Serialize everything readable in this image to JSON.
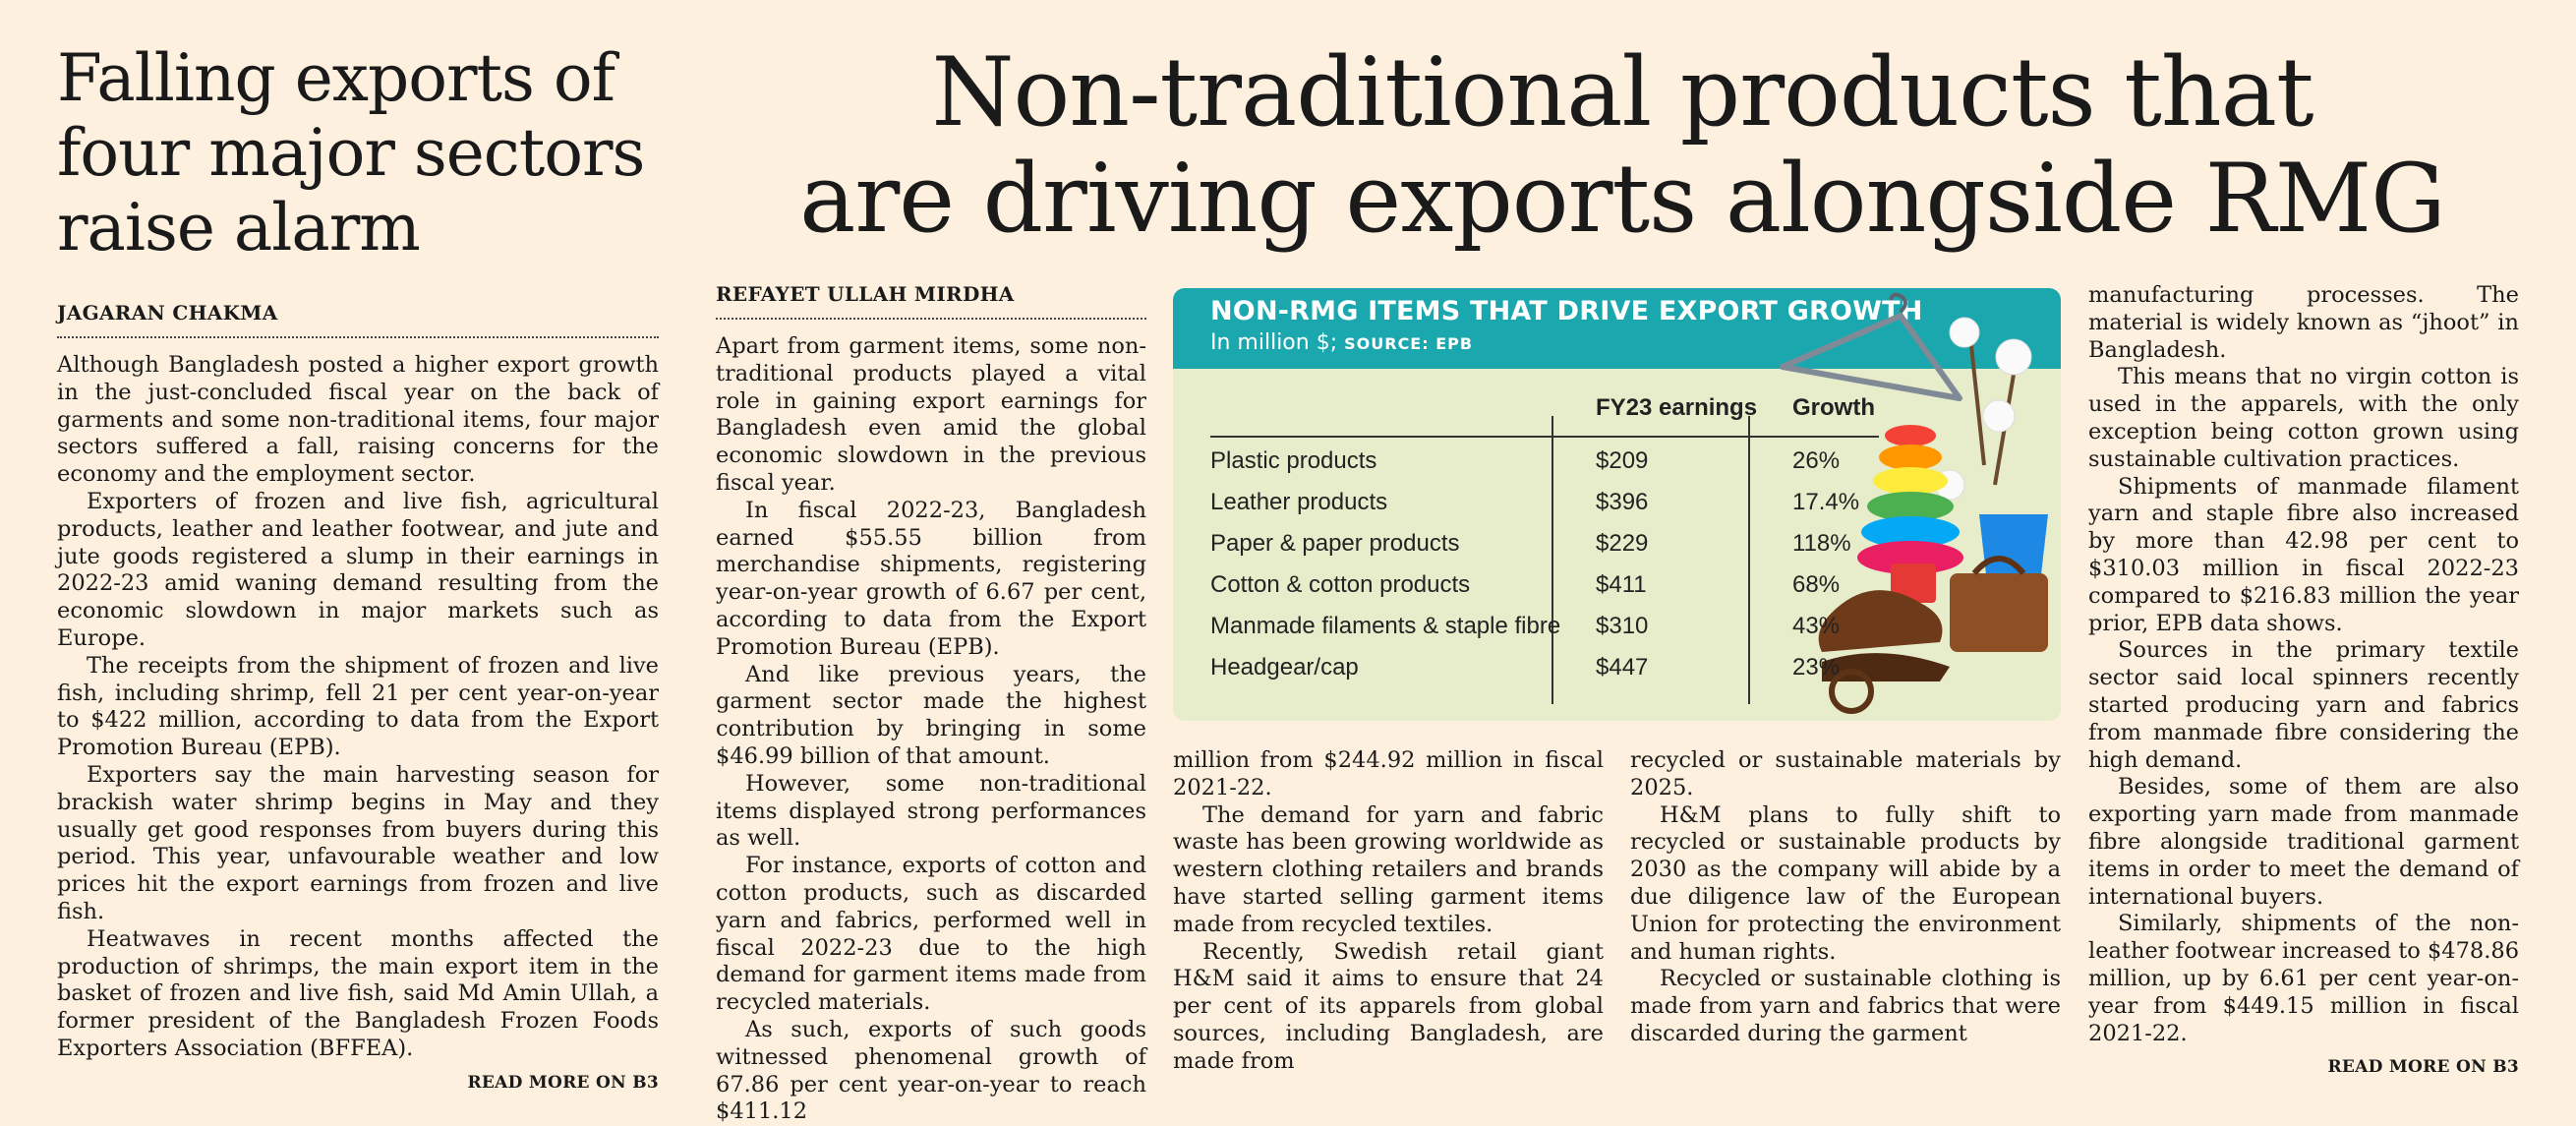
{
  "left_story": {
    "headline": "Falling exports of four major sectors raise alarm",
    "byline": "JAGARAN CHAKMA",
    "paragraphs": [
      "Although Bangladesh posted a higher export growth in the just-concluded fiscal year on the back of garments and some non-traditional items, four major sectors suffered a fall, raising concerns for the economy and the employment sector.",
      "Exporters of frozen and live fish, agricultural products, leather and leather footwear, and jute and jute goods registered a slump in their earnings in 2022-23 amid waning demand resulting from the economic slowdown in major markets such as Europe.",
      "The receipts from the shipment of frozen and live fish, including shrimp, fell 21 per cent year-on-year to $422 million, according to data from the Export Promotion Bureau (EPB).",
      "Exporters say the main harvesting season for brackish water shrimp begins in May and they usually get good responses from buyers during this period. This year, unfavourable weather and low prices hit the export earnings from frozen and live fish.",
      "Heatwaves in recent months affected the production of shrimps, the main export item in the basket of frozen and live fish, said Md Amin Ullah, a former president of the Bangladesh Frozen Foods Exporters Association (BFFEA)."
    ],
    "read_more": "READ MORE ON B3"
  },
  "main_story": {
    "headline_line1": "Non-traditional products that",
    "headline_line2": "are driving exports alongside RMG",
    "byline": "REFAYET ULLAH MIRDHA",
    "col1": [
      "Apart from garment items, some non-traditional products played a vital role in gaining export earnings for Bangladesh even amid the global economic slowdown in the previous fiscal year.",
      "In fiscal 2022-23, Bangladesh earned $55.55 billion from merchandise shipments, registering year-on-year growth of 6.67 per cent, according to data from the Export Promotion Bureau (EPB).",
      "And like previous years, the garment sector made the highest contribution by bringing in some $46.99 billion of that amount.",
      "However, some non-traditional items displayed strong performances as well.",
      "For instance, exports of cotton and cotton products, such as discarded yarn and fabrics, performed well in fiscal 2022-23 due to the high demand for garment items made from recycled materials.",
      "As such, exports of such goods witnessed phenomenal growth of 67.86 per cent year-on-year to reach $411.12"
    ],
    "col2": [
      "million from $244.92 million in fiscal 2021-22.",
      "The demand for yarn and fabric waste has been growing worldwide as western clothing retailers and brands have started selling garment items made from recycled textiles.",
      "Recently, Swedish retail giant H&M said it aims to ensure that 24 per cent of its apparels from global sources, including Bangladesh, are made from"
    ],
    "col3": [
      "recycled or sustainable materials by 2025.",
      "H&M plans to fully shift to recycled or sustainable products by 2030 as the company will abide by a due diligence law of the European Union for protecting the environment and human rights.",
      "Recycled or sustainable clothing is made from yarn and fabrics that were discarded during the garment"
    ],
    "col4": [
      "manufacturing processes. The material is widely known as “jhoot” in Bangladesh.",
      "This means that no virgin cotton is used in the apparels, with the only exception being cotton grown using sustainable cultivation practices.",
      "Shipments of manmade filament yarn and staple fibre also increased by more than 42.98 per cent to $310.03 million in fiscal 2022-23 compared to $216.83 million the year prior, EPB data shows.",
      "Sources in the primary textile sector said local spinners recently started producing yarn and fabrics from manmade fibre considering the high demand.",
      "Besides, some of them are also exporting yarn made from manmade fibre alongside traditional garment items in order to meet the demand of international buyers.",
      "Similarly, shipments of the non-leather footwear increased to $478.86 million, up by 6.61 per cent year-on-year from $449.15 million in fiscal 2021-22."
    ],
    "read_more": "READ MORE ON B3"
  },
  "chart_data": {
    "type": "table",
    "title": "NON-RMG ITEMS THAT DRIVE EXPORT GROWTH",
    "subtitle": "In million $;",
    "source": "SOURCE: EPB",
    "columns": [
      "FY23 earnings",
      "Growth"
    ],
    "rows": [
      {
        "item": "Plastic products",
        "earnings": "$209",
        "growth": "26%"
      },
      {
        "item": "Leather products",
        "earnings": "$396",
        "growth": "17.4%"
      },
      {
        "item": "Paper & paper products",
        "earnings": "$229",
        "growth": "118%"
      },
      {
        "item": "Cotton & cotton products",
        "earnings": "$411",
        "growth": "68%"
      },
      {
        "item": "Manmade filaments & staple fibre",
        "earnings": "$310",
        "growth": "43%"
      },
      {
        "item": "Headgear/cap",
        "earnings": "$447",
        "growth": "23%"
      }
    ]
  },
  "colors": {
    "page_background": "#fdf0de",
    "chart_header": "#1ba7ae",
    "chart_body": "#e7edcb"
  }
}
